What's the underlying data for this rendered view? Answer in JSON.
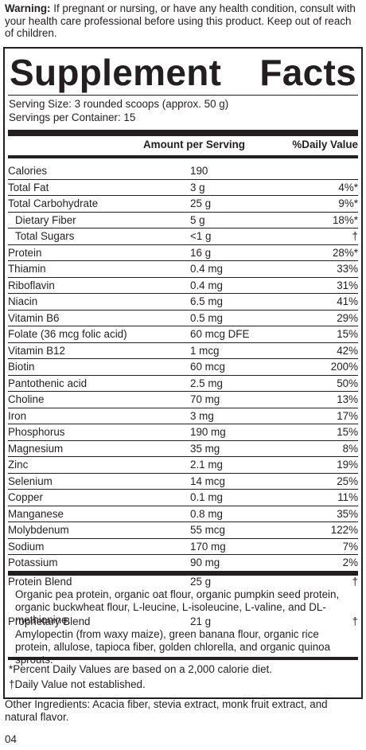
{
  "warning": {
    "label": "Warning:",
    "text": " If pregnant or nursing, or have any health condition, consult with your health care professional before using this product. Keep out of reach of children."
  },
  "panel": {
    "title_left": "Supplement",
    "title_right": "Facts",
    "serving_size": "Serving Size: 3 rounded scoops (approx. 50 g)",
    "servings_per_container": "Servings per Container: 15",
    "col_amount": "Amount per Serving",
    "col_dv": "%Daily Value",
    "rows": [
      {
        "name": "Calories",
        "amount": "190",
        "dv": ""
      },
      {
        "name": "Total Fat",
        "amount": "3 g",
        "dv": "4%*"
      },
      {
        "name": "Total Carbohydrate",
        "amount": "25 g",
        "dv": "9%*"
      },
      {
        "name": "Dietary Fiber",
        "amount": "5 g",
        "dv": "18%*",
        "indent": true
      },
      {
        "name": "Total Sugars",
        "amount": "<1 g",
        "dv": "†",
        "indent": true
      },
      {
        "name": "Protein",
        "amount": "16 g",
        "dv": "28%*"
      },
      {
        "name": "Thiamin",
        "amount": "0.4 mg",
        "dv": "33%"
      },
      {
        "name": "Riboflavin",
        "amount": "0.4 mg",
        "dv": "31%"
      },
      {
        "name": "Niacin",
        "amount": "6.5 mg",
        "dv": "41%"
      },
      {
        "name": "Vitamin B6",
        "amount": "0.5 mg",
        "dv": "29%"
      },
      {
        "name": "Folate (36 mcg folic acid)",
        "amount": "60 mcg DFE",
        "dv": "15%"
      },
      {
        "name": "Vitamin B12",
        "amount": "1 mcg",
        "dv": "42%"
      },
      {
        "name": "Biotin",
        "amount": "60 mcg",
        "dv": "200%"
      },
      {
        "name": "Pantothenic acid",
        "amount": "2.5 mg",
        "dv": "50%"
      },
      {
        "name": "Choline",
        "amount": "70 mg",
        "dv": "13%"
      },
      {
        "name": "Iron",
        "amount": "3 mg",
        "dv": "17%"
      },
      {
        "name": "Phosphorus",
        "amount": "190 mg",
        "dv": "15%"
      },
      {
        "name": "Magnesium",
        "amount": "35 mg",
        "dv": "8%"
      },
      {
        "name": "Zinc",
        "amount": "2.1 mg",
        "dv": "19%"
      },
      {
        "name": "Selenium",
        "amount": "14 mcg",
        "dv": "25%"
      },
      {
        "name": "Copper",
        "amount": "0.1 mg",
        "dv": "11%"
      },
      {
        "name": "Manganese",
        "amount": "0.8 mg",
        "dv": "35%"
      },
      {
        "name": "Molybdenum",
        "amount": "55 mcg",
        "dv": "122%"
      },
      {
        "name": "Sodium",
        "amount": "170 mg",
        "dv": "7%"
      },
      {
        "name": "Potassium",
        "amount": "90 mg",
        "dv": "2%"
      }
    ],
    "blends": [
      {
        "name": "Protein Blend",
        "amount": "25 g",
        "dv": "†",
        "desc": "Organic pea protein, organic oat flour, organic pumpkin seed protein, organic buckwheat flour, L-leucine, L-isoleucine, L-valine, and DL-methionine."
      },
      {
        "name": "Proprietary Blend",
        "amount": "21 g",
        "dv": "†",
        "desc": "Amylopectin (from waxy maize), green banana flour, organic rice protein, allulose, tapioca fiber, golden chlorella, and organic quinoa sprouts."
      }
    ],
    "footnote_1": "*Percent Daily Values are based on a 2,000 calorie diet.",
    "footnote_2": "†Daily Value not established."
  },
  "other_ingredients": "Other Ingredients: Acacia fiber, stevia extract, monk fruit extract, and natural flavor.",
  "code": "04"
}
